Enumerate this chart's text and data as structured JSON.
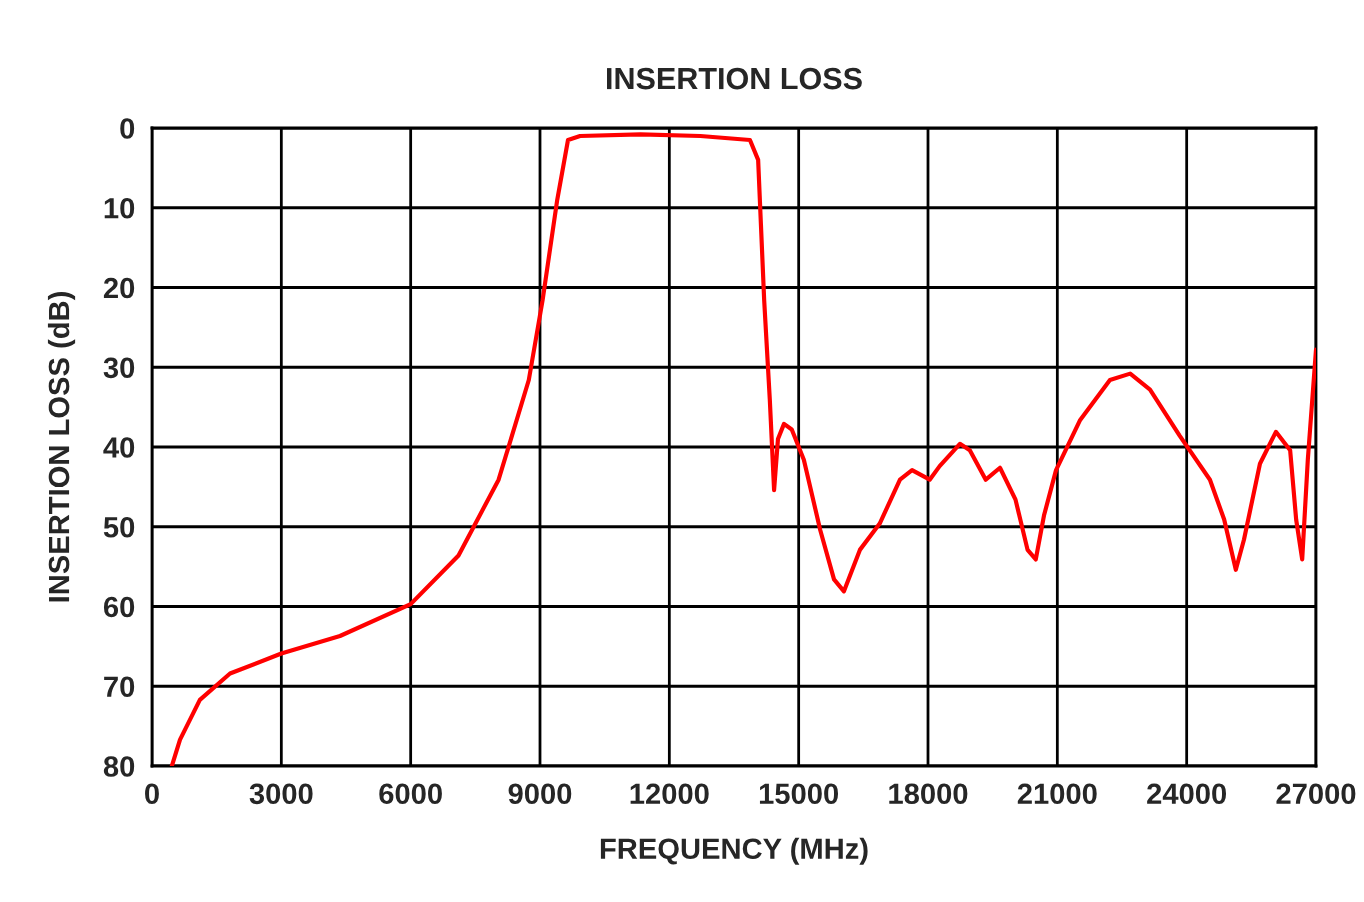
{
  "chart_data": {
    "type": "line",
    "title": "INSERTION LOSS",
    "xlabel": "FREQUENCY (MHz)",
    "ylabel": "INSERTION LOSS (dB)",
    "series": [
      {
        "color": "#ff0000",
        "x": [
          460,
          650,
          1110,
          1810,
          3000,
          4360,
          6000,
          7110,
          8040,
          8740,
          9060,
          9400,
          9650,
          9930,
          11330,
          12720,
          13870,
          14060,
          14200,
          14330,
          14430,
          14520,
          14660,
          14840,
          15120,
          15500,
          15820,
          16050,
          16420,
          16880,
          17350,
          17630,
          18040,
          18270,
          18740,
          18970,
          19340,
          19670,
          20030,
          20310,
          20500,
          20690,
          20970,
          21530,
          22220,
          22690,
          23150,
          23840,
          24540,
          24870,
          25140,
          25330,
          25700,
          26070,
          26400,
          26540,
          26680,
          26810,
          27000
        ],
        "values": [
          80,
          76.7,
          71.7,
          68.4,
          65.9,
          63.7,
          59.7,
          53.6,
          44.1,
          31.6,
          21.6,
          9.0,
          1.5,
          1.0,
          0.8,
          1.0,
          1.5,
          4,
          21.6,
          34,
          45.4,
          39,
          37.1,
          37.8,
          41.6,
          50.4,
          56.6,
          58.1,
          52.9,
          49.6,
          44.1,
          42.9,
          44.1,
          42.4,
          39.6,
          40.4,
          44.1,
          42.6,
          46.6,
          52.9,
          54.1,
          48.6,
          42.9,
          36.6,
          31.6,
          30.8,
          32.8,
          38.6,
          44.1,
          49.1,
          55.4,
          51.6,
          42.1,
          38.1,
          40.4,
          49.1,
          54.1,
          41.6,
          27.8
        ]
      }
    ],
    "xlim": [
      0,
      27000
    ],
    "xticks": [
      0,
      3000,
      6000,
      9000,
      12000,
      15000,
      18000,
      21000,
      24000,
      27000
    ],
    "ylim": [
      80,
      0
    ],
    "yticks": [
      0,
      10,
      20,
      30,
      40,
      50,
      60,
      70,
      80
    ],
    "grid": true
  }
}
